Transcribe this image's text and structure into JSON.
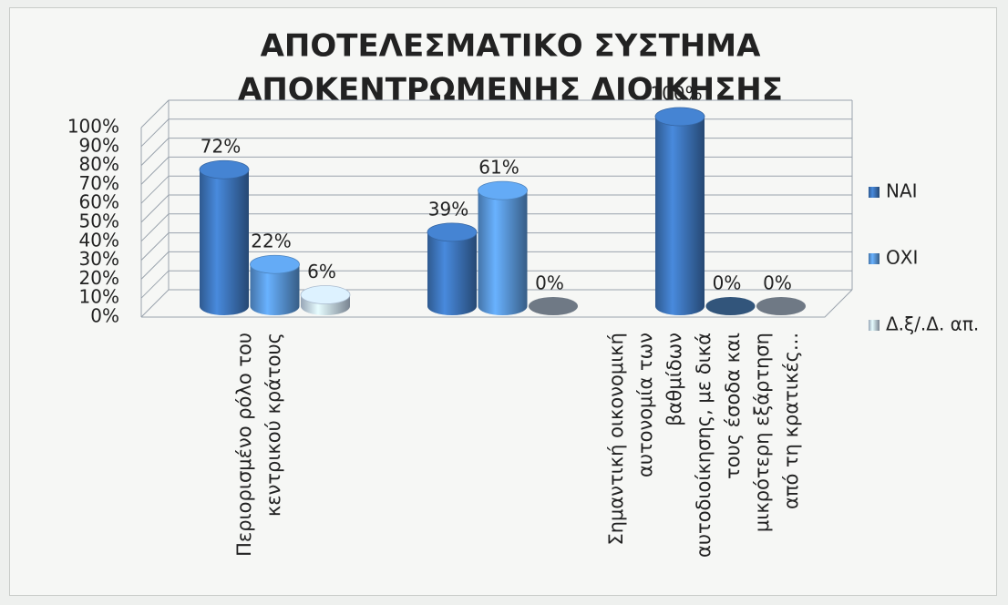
{
  "chart_data": {
    "type": "bar3d",
    "title": [
      "ΑΠΟΤΕΛΕΣΜΑΤΙΚΟ ΣΥΣΤΗΜΑ",
      "ΑΠΟΚΕΝΤΡΩΜΕΝΗΣ ΔΙΟΙΚΗΣΗΣ"
    ],
    "categories": [
      "Περιορισμένο ρόλο του κεντρικού κράτους",
      null,
      "Σημαντική οικονομική αυτονομία των βαθμίδων αυτοδιοίκησης, με δικά τους έσοδα και μικρότερη εξάρτηση από τη κρατικές..."
    ],
    "series": [
      {
        "name": "ΝΑΙ",
        "color": "#3f78c0",
        "values": [
          72,
          39,
          100
        ],
        "value_labels": [
          "72%",
          "39%",
          "100%"
        ]
      },
      {
        "name": "ΟΧΙ",
        "color": "#5b9be0",
        "values": [
          22,
          61,
          0
        ],
        "value_labels": [
          "22%",
          "61%",
          "0%"
        ]
      },
      {
        "name": "Δ.ξ/.Δ. απ.",
        "color": "#c9dcf2",
        "values": [
          6,
          0,
          0
        ],
        "value_labels": [
          "6%",
          "0%",
          "0%"
        ]
      }
    ],
    "ylim": [
      0,
      100
    ],
    "yticks": [
      {
        "value": 0,
        "label": "0%"
      },
      {
        "value": 10,
        "label": "10%"
      },
      {
        "value": 20,
        "label": "20%"
      },
      {
        "value": 30,
        "label": "30%"
      },
      {
        "value": 40,
        "label": "40%"
      },
      {
        "value": 50,
        "label": "50%"
      },
      {
        "value": 60,
        "label": "60%"
      },
      {
        "value": 70,
        "label": "70%"
      },
      {
        "value": 80,
        "label": "80%"
      },
      {
        "value": 90,
        "label": "90%"
      },
      {
        "value": 100,
        "label": "100%"
      }
    ],
    "grid": true,
    "legend": "right"
  }
}
